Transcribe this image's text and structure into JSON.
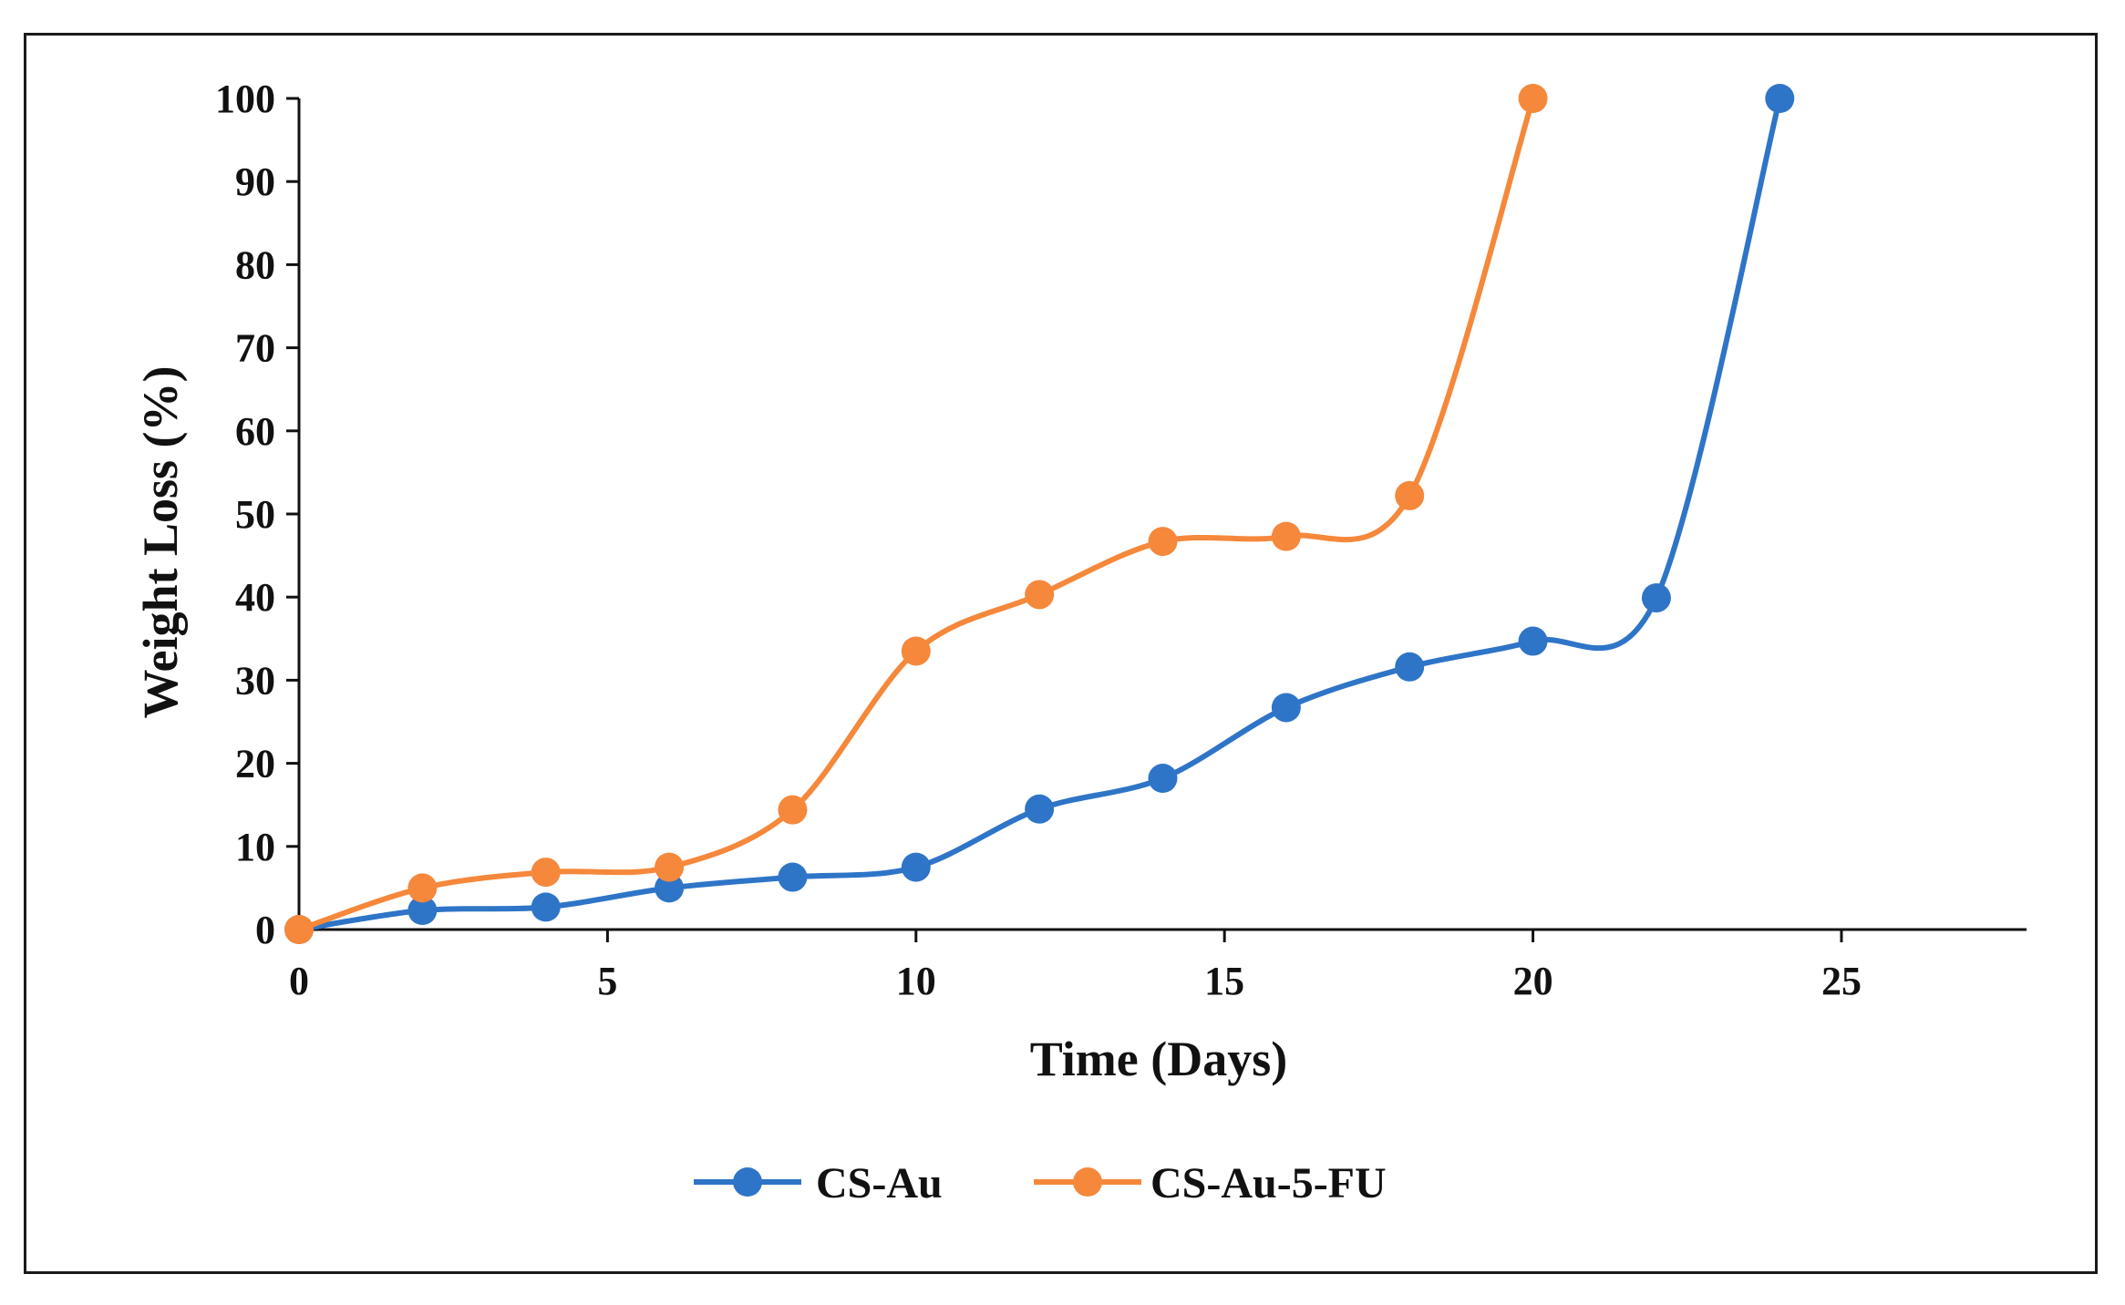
{
  "chart_data": {
    "type": "line",
    "title": "",
    "xlabel": "Time (Days)",
    "ylabel": "Weight Loss (%)",
    "xlim": [
      0,
      28
    ],
    "ylim": [
      0,
      100
    ],
    "xticks": [
      0,
      5,
      10,
      15,
      20,
      25
    ],
    "yticks": [
      0,
      10,
      20,
      30,
      40,
      50,
      60,
      70,
      80,
      90,
      100
    ],
    "grid": false,
    "legend_position": "bottom",
    "series": [
      {
        "name": "CS-Au",
        "color": "#2e75c8",
        "x": [
          0,
          2,
          4,
          6,
          8,
          10,
          12,
          14,
          16,
          18,
          20,
          22,
          24
        ],
        "y": [
          0,
          2.3,
          2.7,
          5,
          6.3,
          7.5,
          14.5,
          18.2,
          26.7,
          31.6,
          34.7,
          39.9,
          100
        ]
      },
      {
        "name": "CS-Au-5-FU",
        "color": "#f5883b",
        "x": [
          0,
          2,
          4,
          6,
          8,
          10,
          12,
          14,
          16,
          18,
          20
        ],
        "y": [
          0,
          5,
          6.9,
          7.5,
          14.4,
          33.5,
          40.3,
          46.7,
          47.3,
          52.2,
          100
        ]
      }
    ]
  }
}
